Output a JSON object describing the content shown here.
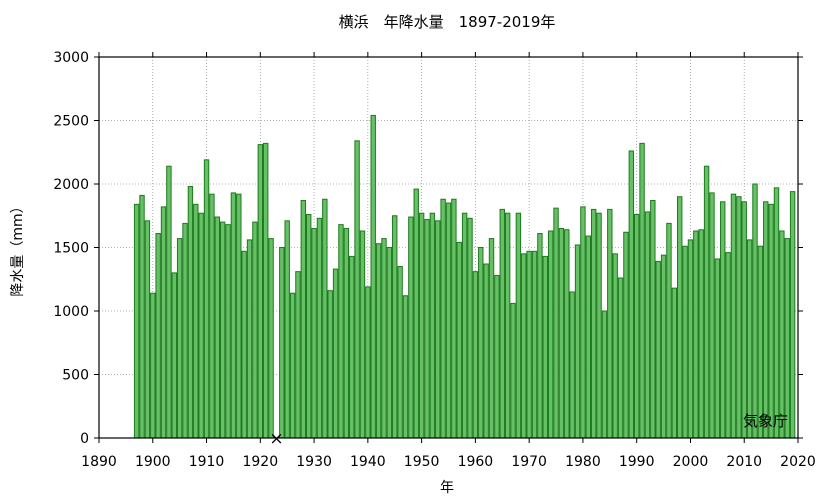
{
  "chart_data": {
    "type": "bar",
    "title": "横浜　年降水量　1897-2019年",
    "xlabel": "年",
    "ylabel": "降水量（mm）",
    "annotation": "気象庁",
    "xlim": [
      1890,
      2020
    ],
    "ylim": [
      0,
      3000
    ],
    "x_ticks": [
      1890,
      1900,
      1910,
      1920,
      1930,
      1940,
      1950,
      1960,
      1970,
      1980,
      1990,
      2000,
      2010,
      2020
    ],
    "y_ticks": [
      0,
      500,
      1000,
      1500,
      2000,
      2500,
      3000
    ],
    "grid": true,
    "bar_color": "#66c066",
    "bar_edge_color": "#1f7a1f",
    "missing_marker": "×",
    "missing_years": [
      1923
    ],
    "x": [
      1897,
      1898,
      1899,
      1900,
      1901,
      1902,
      1903,
      1904,
      1905,
      1906,
      1907,
      1908,
      1909,
      1910,
      1911,
      1912,
      1913,
      1914,
      1915,
      1916,
      1917,
      1918,
      1919,
      1920,
      1921,
      1922,
      1923,
      1924,
      1925,
      1926,
      1927,
      1928,
      1929,
      1930,
      1931,
      1932,
      1933,
      1934,
      1935,
      1936,
      1937,
      1938,
      1939,
      1940,
      1941,
      1942,
      1943,
      1944,
      1945,
      1946,
      1947,
      1948,
      1949,
      1950,
      1951,
      1952,
      1953,
      1954,
      1955,
      1956,
      1957,
      1958,
      1959,
      1960,
      1961,
      1962,
      1963,
      1964,
      1965,
      1966,
      1967,
      1968,
      1969,
      1970,
      1971,
      1972,
      1973,
      1974,
      1975,
      1976,
      1977,
      1978,
      1979,
      1980,
      1981,
      1982,
      1983,
      1984,
      1985,
      1986,
      1987,
      1988,
      1989,
      1990,
      1991,
      1992,
      1993,
      1994,
      1995,
      1996,
      1997,
      1998,
      1999,
      2000,
      2001,
      2002,
      2003,
      2004,
      2005,
      2006,
      2007,
      2008,
      2009,
      2010,
      2011,
      2012,
      2013,
      2014,
      2015,
      2016,
      2017,
      2018,
      2019
    ],
    "values": [
      1840,
      1910,
      1710,
      1140,
      1610,
      1820,
      2140,
      1300,
      1570,
      1690,
      1980,
      1840,
      1770,
      2190,
      1920,
      1740,
      1700,
      1680,
      1930,
      1920,
      1470,
      1560,
      1700,
      2310,
      2320,
      1570,
      null,
      1500,
      1710,
      1140,
      1310,
      1870,
      1760,
      1650,
      1730,
      1880,
      1160,
      1330,
      1680,
      1650,
      1430,
      2340,
      1630,
      1190,
      2540,
      1530,
      1570,
      1500,
      1750,
      1350,
      1120,
      1740,
      1960,
      1770,
      1720,
      1770,
      1710,
      1880,
      1850,
      1880,
      1540,
      1770,
      1730,
      1310,
      1500,
      1370,
      1570,
      1280,
      1800,
      1770,
      1060,
      1770,
      1450,
      1470,
      1470,
      1610,
      1430,
      1630,
      1810,
      1650,
      1640,
      1150,
      1520,
      1820,
      1590,
      1800,
      1770,
      1000,
      1800,
      1450,
      1260,
      1620,
      2260,
      1760,
      2320,
      1780,
      1870,
      1390,
      1440,
      1690,
      1180,
      1900,
      1510,
      1560,
      1630,
      1640,
      2140,
      1930,
      1410,
      1860,
      1460,
      1920,
      1900,
      1860,
      1560,
      2000,
      1510,
      1860,
      1840,
      1970,
      1630,
      1570,
      1940
    ]
  }
}
